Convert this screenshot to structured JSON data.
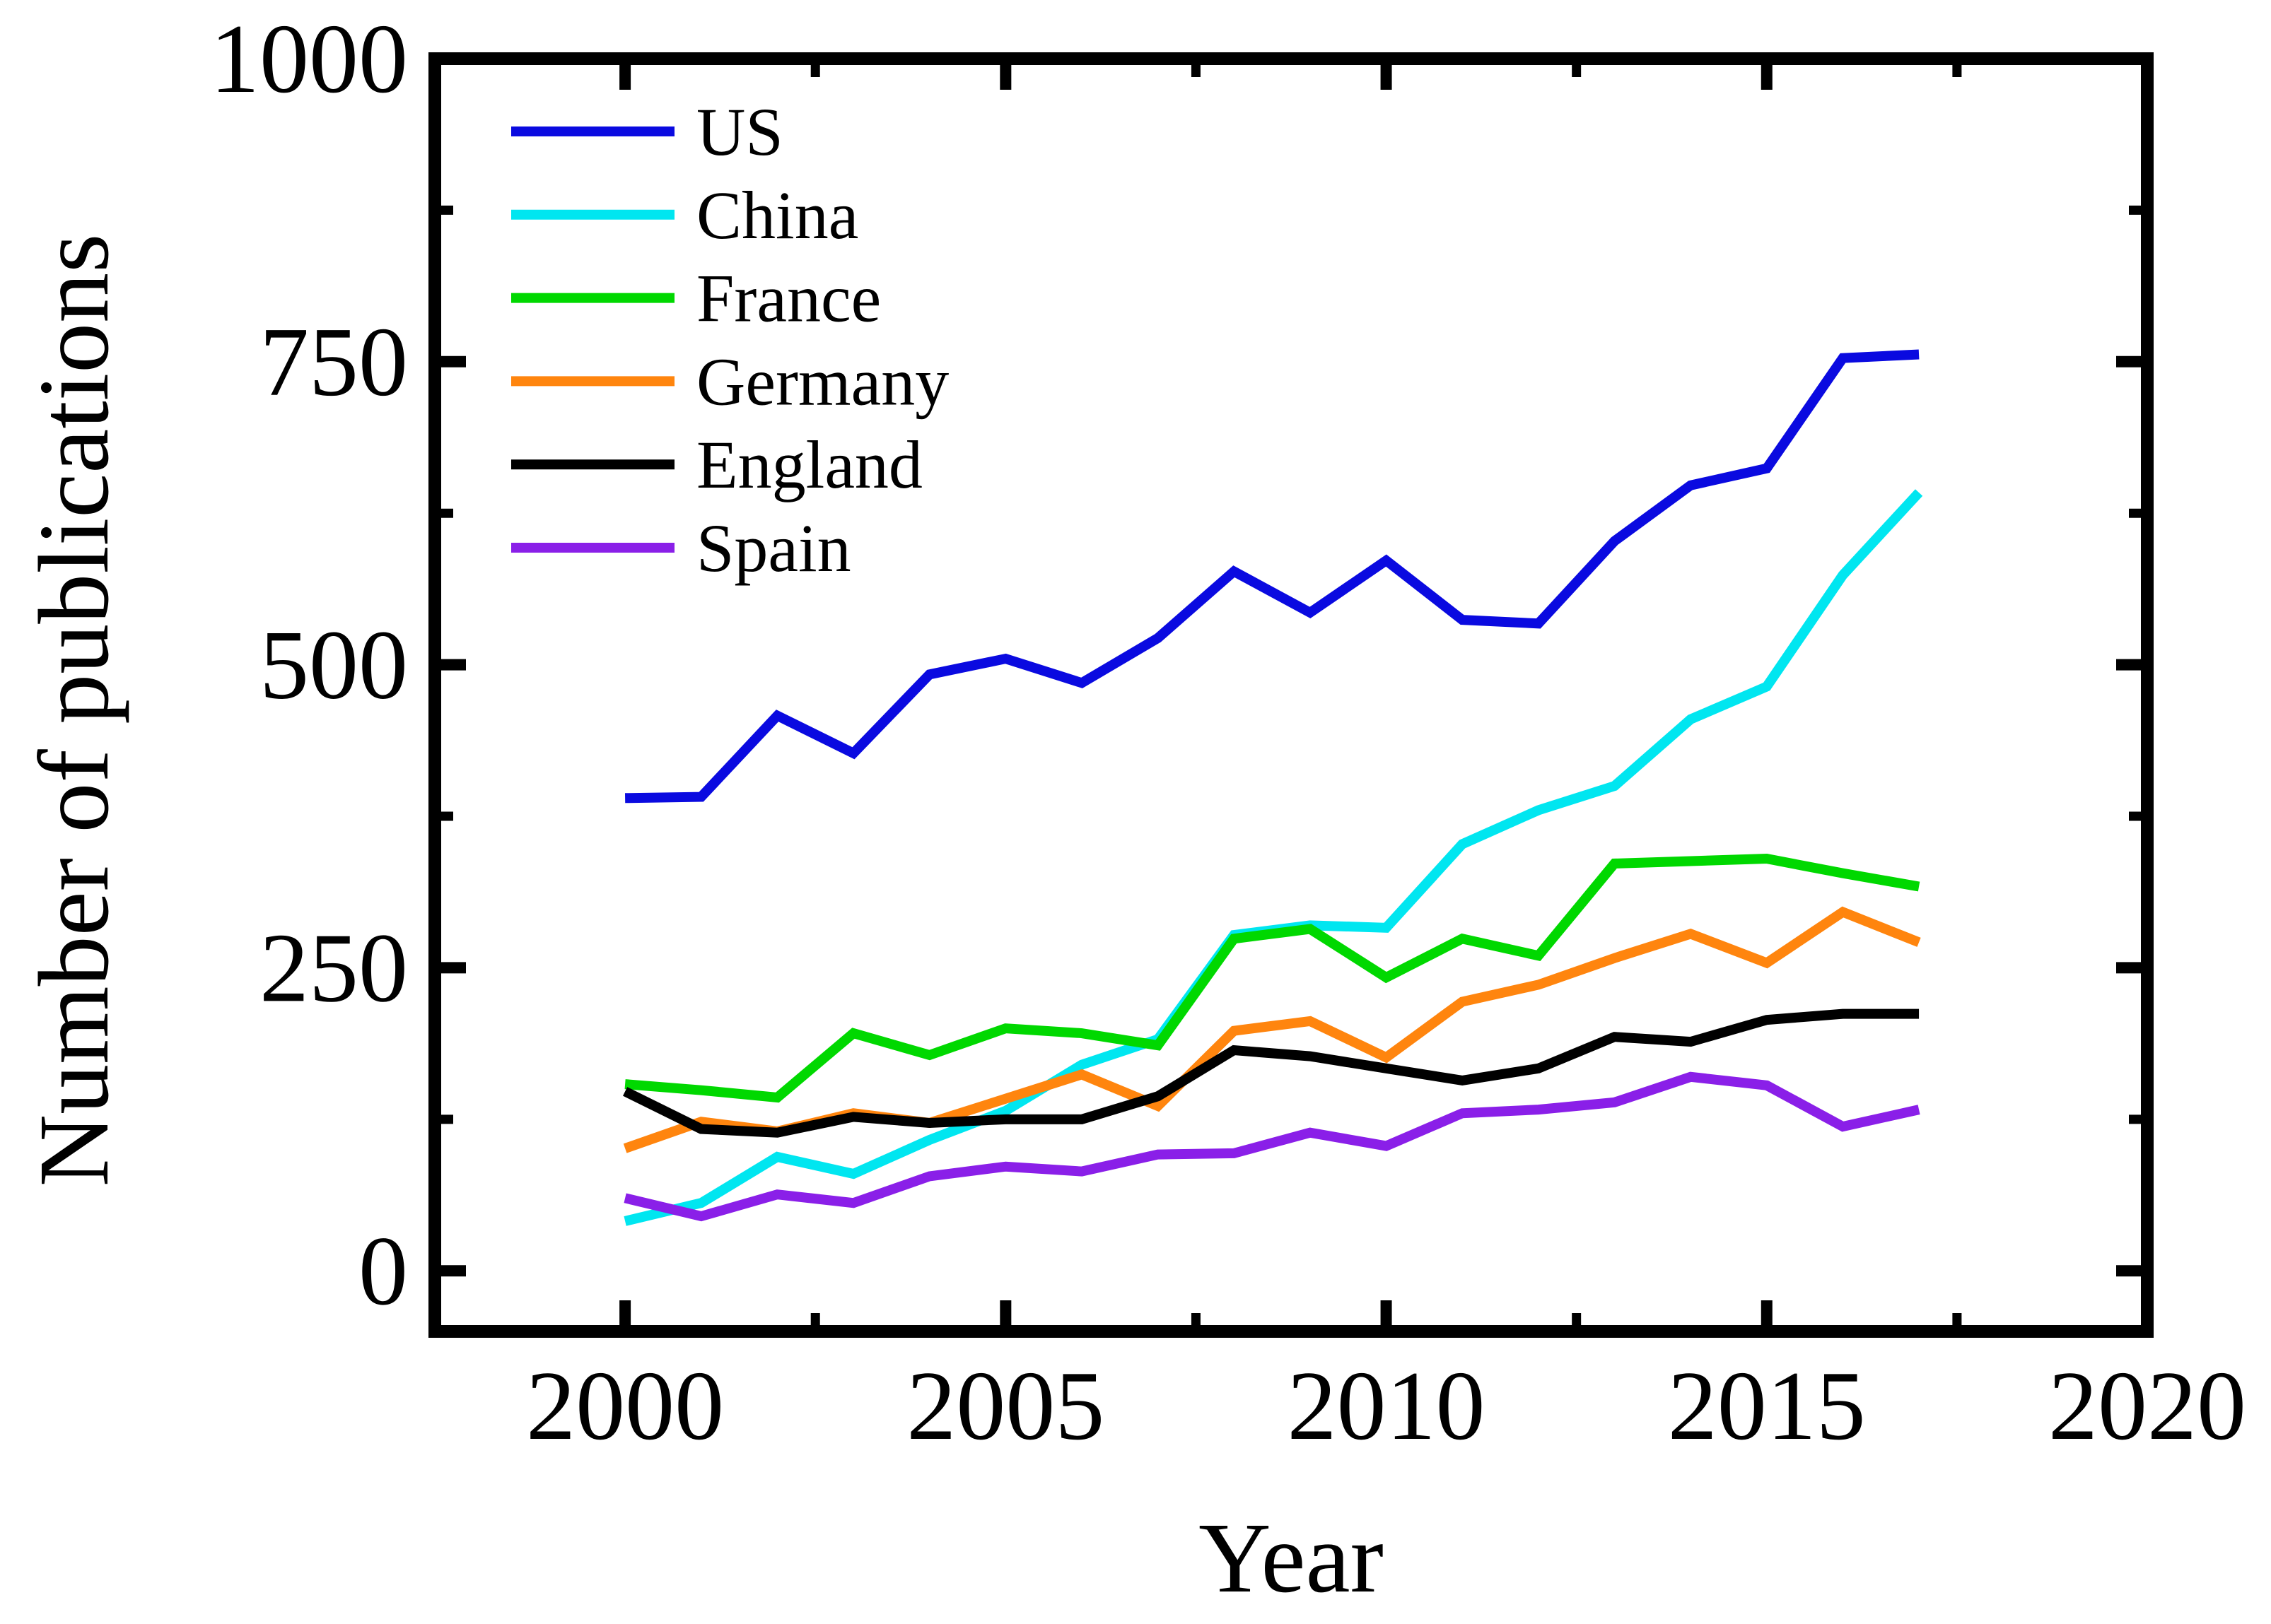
{
  "chart_data": {
    "type": "line",
    "title": "",
    "xlabel": "Year",
    "ylabel": "Number of publications",
    "x": [
      2000,
      2001,
      2002,
      2003,
      2004,
      2005,
      2006,
      2007,
      2008,
      2009,
      2010,
      2011,
      2012,
      2013,
      2014,
      2015,
      2016,
      2017
    ],
    "series": [
      {
        "name": "US",
        "color": "#0a0ae0",
        "values": [
          390,
          391,
          458,
          427,
          492,
          505,
          485,
          522,
          577,
          543,
          586,
          537,
          534,
          602,
          648,
          662,
          753,
          756
        ]
      },
      {
        "name": "China",
        "color": "#00e6f0",
        "values": [
          41,
          56,
          94,
          80,
          108,
          132,
          170,
          191,
          277,
          285,
          283,
          352,
          380,
          400,
          455,
          482,
          574,
          642
        ]
      },
      {
        "name": "France",
        "color": "#00d800",
        "values": [
          154,
          149,
          143,
          196,
          178,
          200,
          196,
          186,
          274,
          282,
          242,
          274,
          260,
          336,
          338,
          340,
          328,
          317
        ]
      },
      {
        "name": "Germany",
        "color": "#ff850e",
        "values": [
          101,
          123,
          115,
          130,
          122,
          142,
          162,
          136,
          198,
          206,
          176,
          222,
          236,
          258,
          278,
          254,
          296,
          271
        ]
      },
      {
        "name": "England",
        "color": "#000000",
        "values": [
          148,
          117,
          114,
          127,
          122,
          125,
          125,
          144,
          182,
          177,
          167,
          157,
          167,
          193,
          189,
          207,
          212,
          212
        ]
      },
      {
        "name": "Spain",
        "color": "#8a1fe8",
        "values": [
          60,
          45,
          63,
          56,
          78,
          86,
          82,
          96,
          97,
          114,
          103,
          130,
          133,
          139,
          160,
          153,
          119,
          133
        ]
      }
    ],
    "xlim": [
      1997.5,
      2020
    ],
    "ylim": [
      -50,
      1000
    ],
    "xticks": [
      2000,
      2005,
      2010,
      2015,
      2020
    ],
    "xticks_minor": [
      2002.5,
      2007.5,
      2012.5,
      2017.5
    ],
    "yticks": [
      0,
      250,
      500,
      750,
      1000
    ],
    "yticks_minor": [
      125,
      375,
      625,
      875
    ],
    "grid": false,
    "legend_position": "top-left-inside",
    "axis_color": "#000000"
  }
}
